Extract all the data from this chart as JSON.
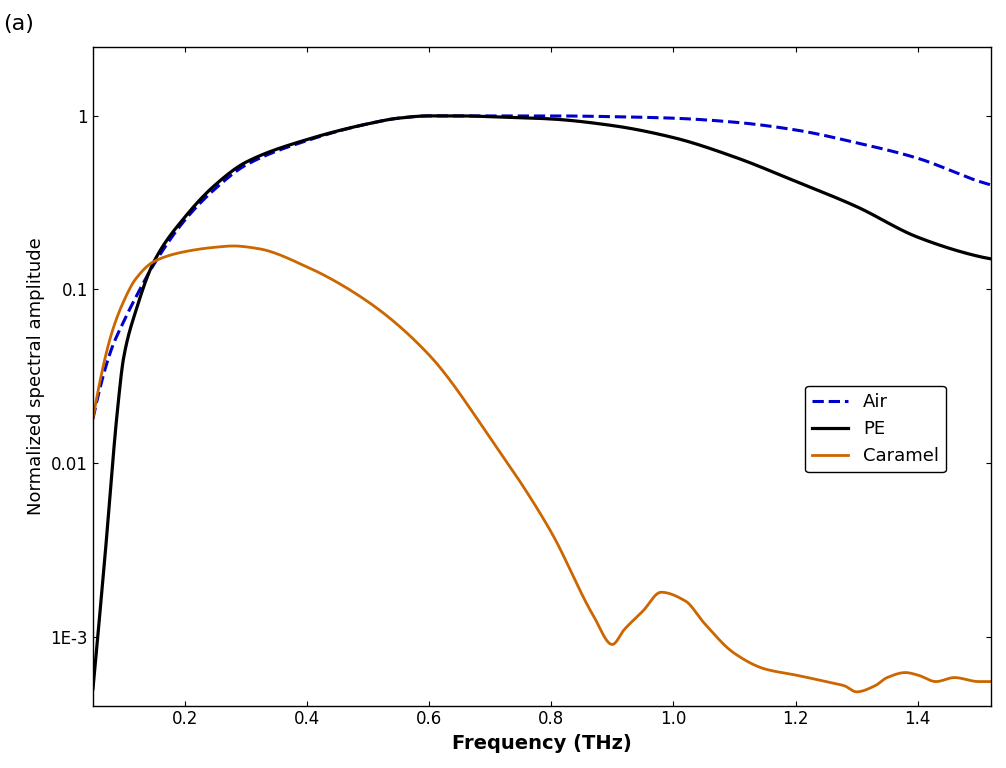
{
  "title": "",
  "panel_label": "(a)",
  "xlabel": "Frequency (THz)",
  "ylabel": "Normalized spectral amplitude",
  "xlim": [
    0.05,
    1.52
  ],
  "ylim": [
    0.0004,
    2.5
  ],
  "legend_entries": [
    "Air",
    "PE",
    "Caramel"
  ],
  "air_color": "#0000cc",
  "pe_color": "#000000",
  "caramel_color": "#cc6600",
  "background_color": "#ffffff",
  "yticks": [
    0.001,
    0.01,
    0.1,
    1
  ],
  "ytick_labels": [
    "1E-3",
    "0.01",
    "0.1",
    "1"
  ],
  "xticks": [
    0.2,
    0.4,
    0.6,
    0.8,
    1.0,
    1.2,
    1.4
  ],
  "xlabel_fontsize": 14,
  "ylabel_fontsize": 13,
  "tick_fontsize": 12,
  "legend_fontsize": 13,
  "panel_fontsize": 16
}
